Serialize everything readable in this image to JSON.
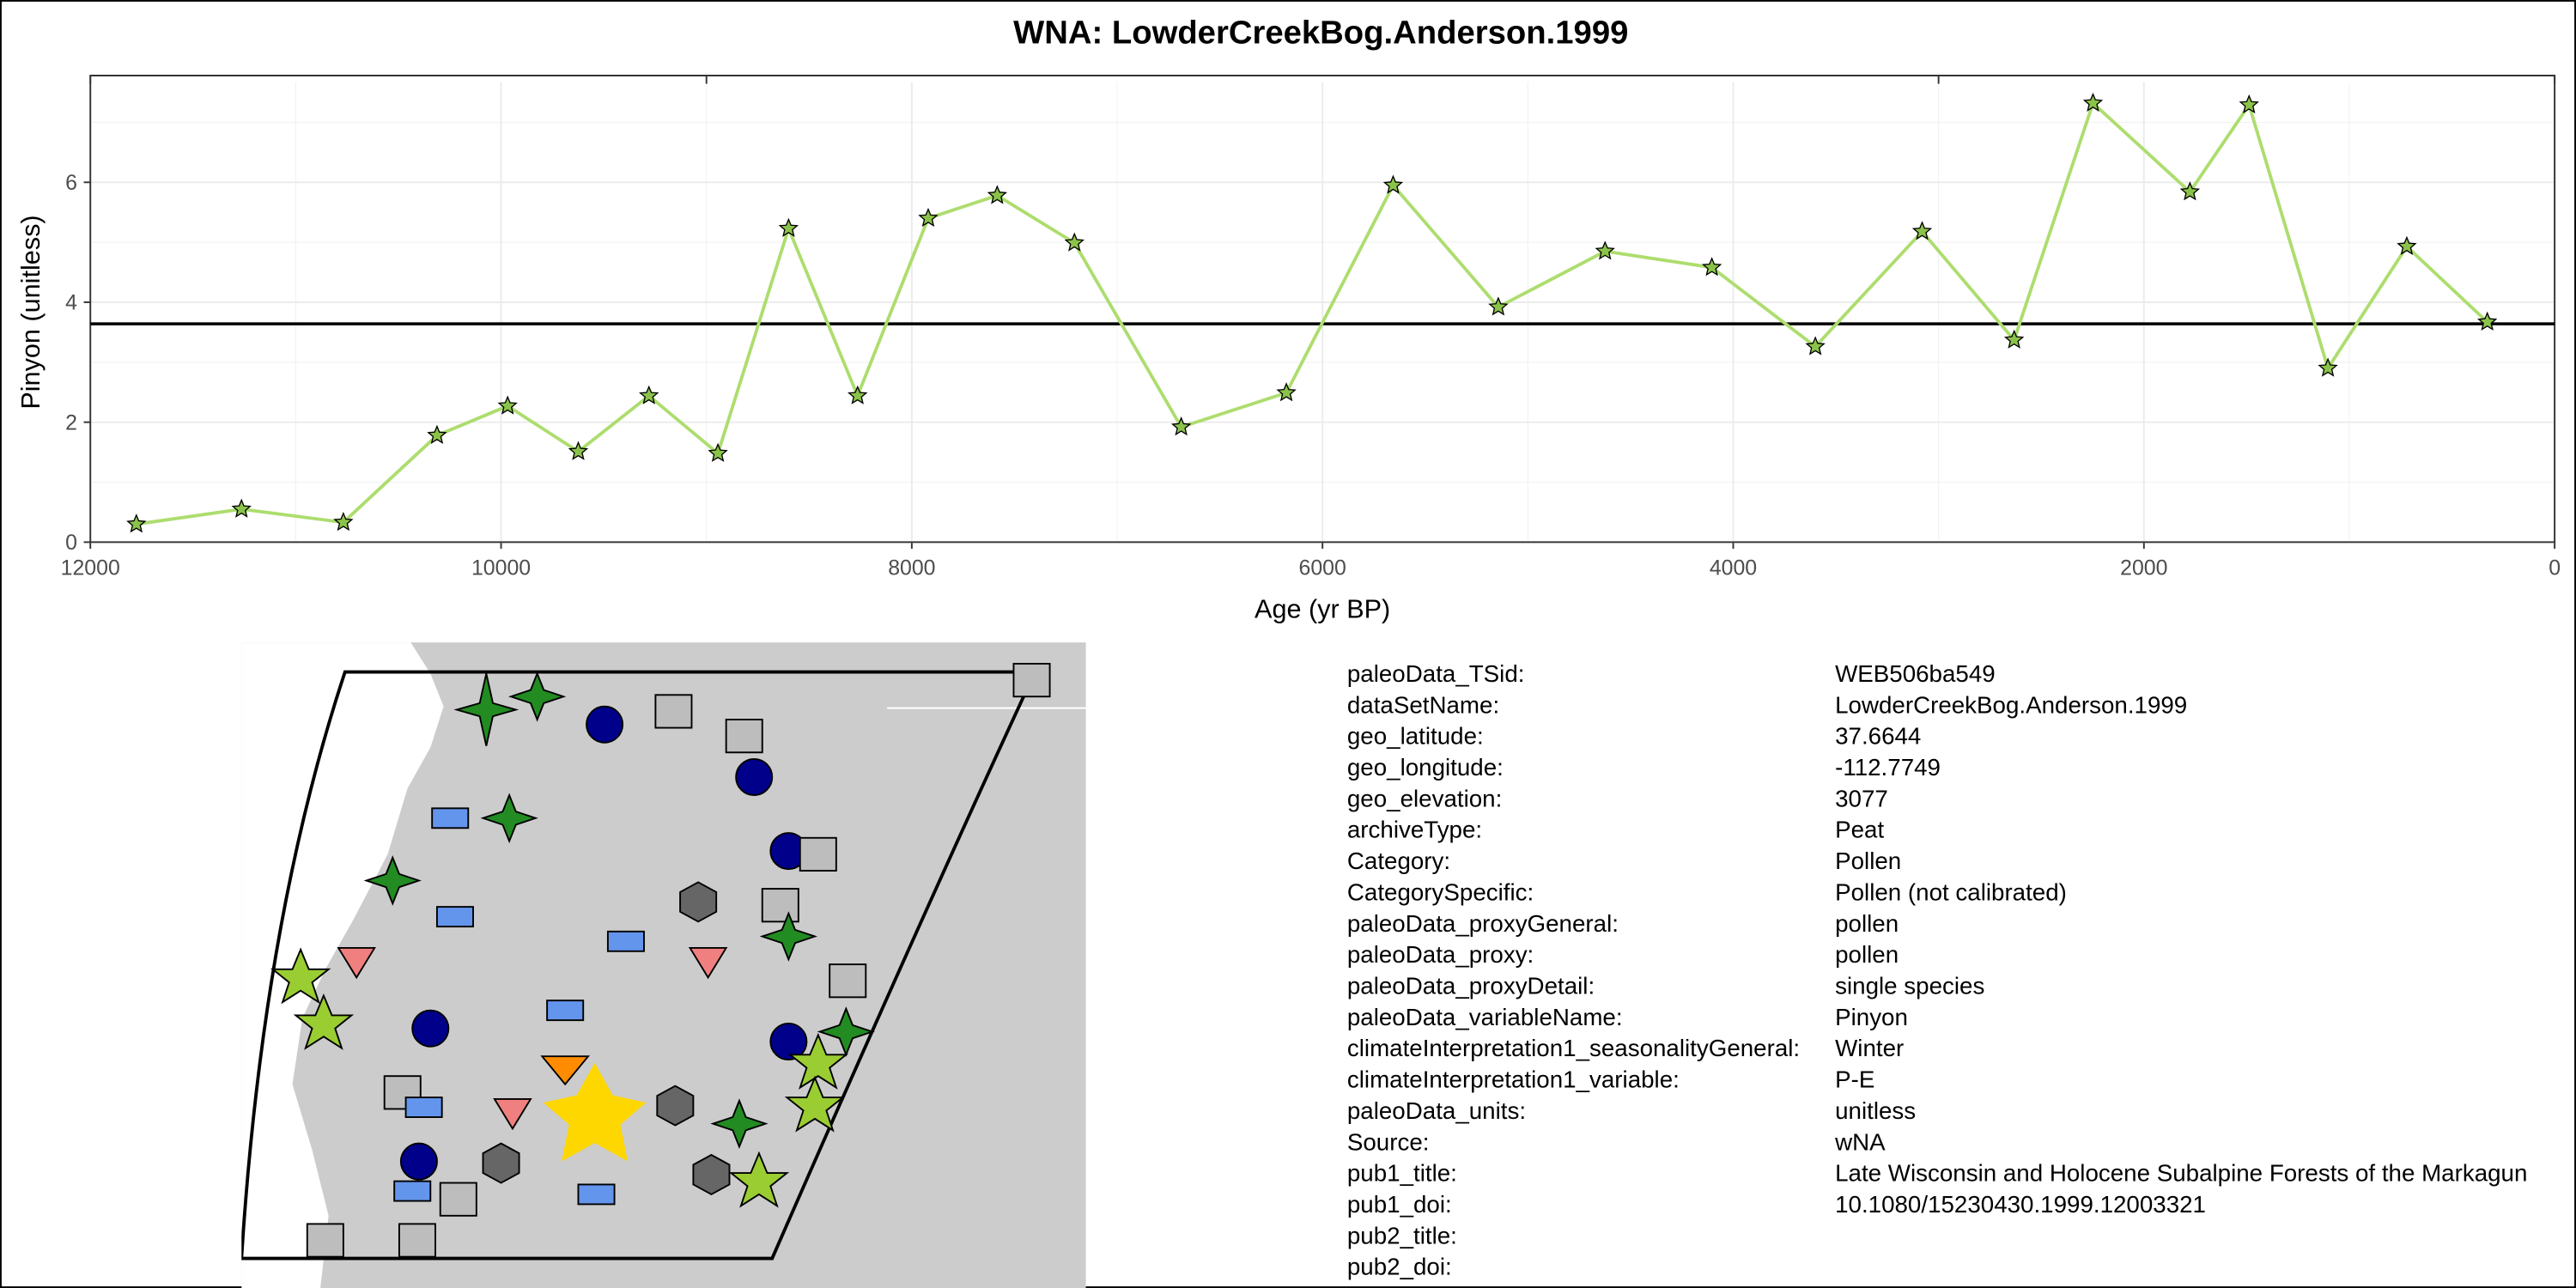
{
  "chart_data": {
    "type": "line",
    "title": "WNA: LowderCreekBog.Anderson.1999",
    "xlabel": "Age (yr BP)",
    "ylabel": "Pinyon (unitless)",
    "x": [
      11776,
      11264,
      10768,
      10312,
      9968,
      9624,
      9280,
      8944,
      8600,
      8264,
      7920,
      7584,
      7208,
      6688,
      6176,
      5656,
      5144,
      4624,
      4104,
      3600,
      3080,
      2632,
      2248,
      1776,
      1488,
      1104,
      720,
      328
    ],
    "values": [
      0.3,
      0.55,
      0.33,
      1.78,
      2.27,
      1.51,
      2.44,
      1.48,
      5.23,
      2.44,
      5.4,
      5.78,
      4.99,
      1.92,
      2.49,
      5.95,
      3.92,
      4.85,
      4.58,
      3.26,
      5.18,
      3.37,
      7.32,
      5.84,
      7.29,
      2.9,
      4.93,
      3.67
    ],
    "color": "#addd6e",
    "marker_color": "#8bc34a",
    "hline": 3.64,
    "xlim": [
      12000,
      0
    ],
    "xticks": [
      12000,
      10000,
      8000,
      6000,
      4000,
      2000,
      0
    ],
    "ylim": [
      0,
      7.67
    ],
    "yticks": [
      0,
      2,
      4,
      6
    ],
    "grid": true
  },
  "metadata": {
    "rows": [
      [
        "paleoData_TSid:",
        "WEB506ba549"
      ],
      [
        "dataSetName:",
        "LowderCreekBog.Anderson.1999"
      ],
      [
        "geo_latitude:",
        "37.6644"
      ],
      [
        "geo_longitude:",
        "-112.7749"
      ],
      [
        "geo_elevation:",
        "3077"
      ],
      [
        "archiveType:",
        "Peat"
      ],
      [
        "Category:",
        "Pollen"
      ],
      [
        "CategorySpecific:",
        "Pollen (not calibrated)"
      ],
      [
        "paleoData_proxyGeneral:",
        "pollen"
      ],
      [
        "paleoData_proxy:",
        "pollen"
      ],
      [
        "paleoData_proxyDetail:",
        "single species"
      ],
      [
        "paleoData_variableName:",
        "Pinyon"
      ],
      [
        "climateInterpretation1_seasonalityGeneral:",
        "Winter"
      ],
      [
        "climateInterpretation1_variable:",
        "P-E"
      ],
      [
        "paleoData_units:",
        "unitless"
      ],
      [
        "Source:",
        "wNA"
      ],
      [
        "pub1_title:",
        "Late Wisconsin and Holocene Subalpine Forests of the Markagun"
      ],
      [
        "pub1_doi:",
        "10.1080/15230430.1999.12003321"
      ],
      [
        "pub2_title:",
        ""
      ],
      [
        "pub2_doi:",
        ""
      ]
    ]
  }
}
